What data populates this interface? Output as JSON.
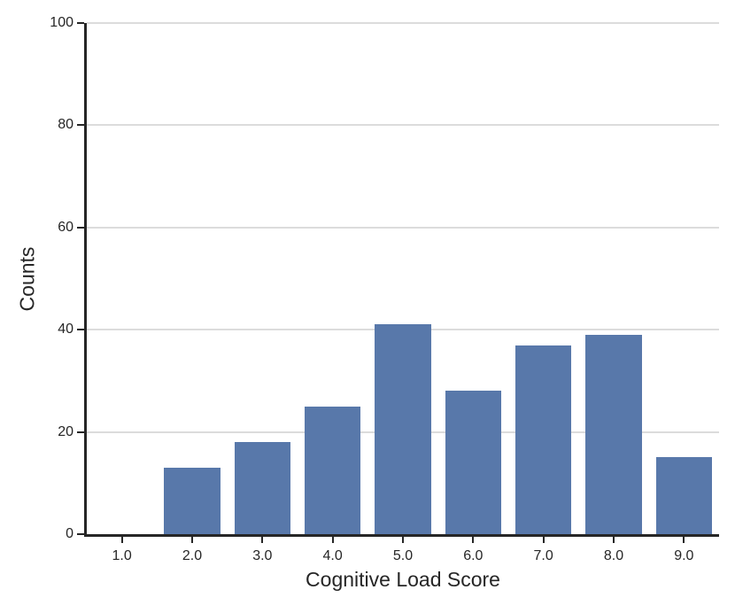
{
  "chart_data": {
    "type": "bar",
    "title": "",
    "xlabel": "Cognitive Load Score",
    "ylabel": "Counts",
    "categories": [
      "1.0",
      "2.0",
      "3.0",
      "4.0",
      "5.0",
      "6.0",
      "7.0",
      "8.0",
      "9.0"
    ],
    "values": [
      0,
      13,
      18,
      25,
      41,
      28,
      37,
      39,
      15
    ],
    "ylim": [
      0,
      100
    ],
    "yticks": [
      0,
      20,
      40,
      60,
      80,
      100
    ],
    "grid": "horizontal",
    "legend": "none",
    "colors": {
      "bar_fill": "#5878AA",
      "axis": "#262626",
      "grid_line": "#DCDCDC",
      "text": "#262626",
      "background": "#FFFFFF"
    }
  }
}
